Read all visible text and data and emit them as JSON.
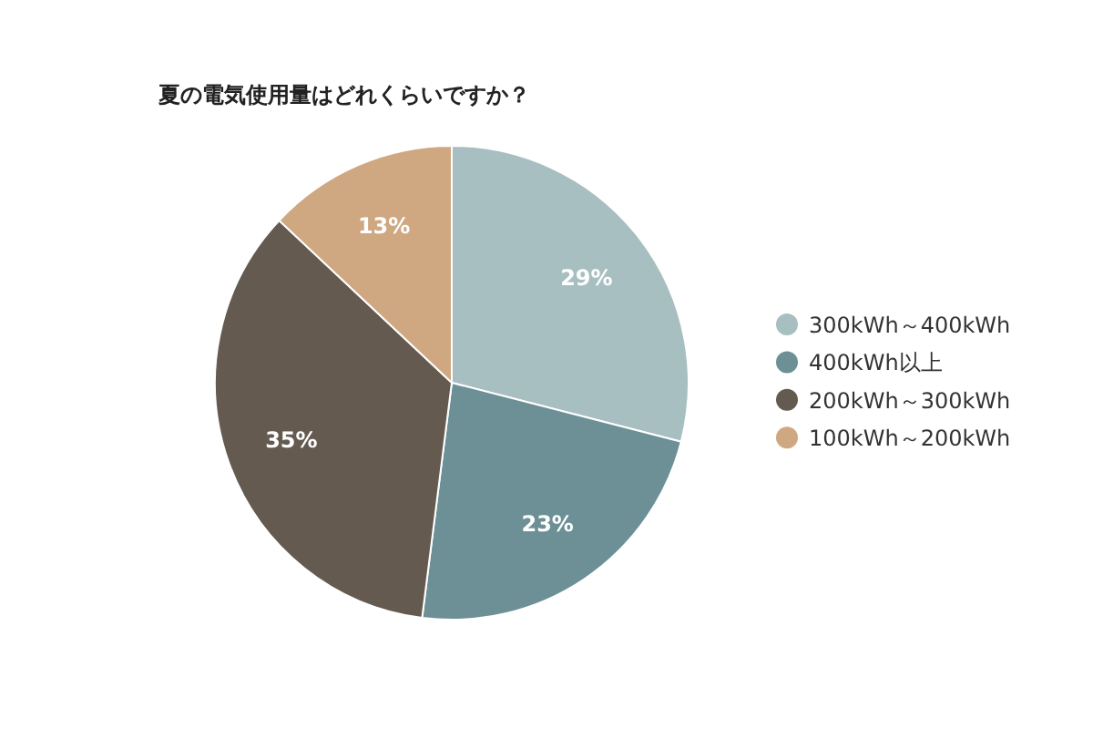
{
  "chart_data": {
    "type": "pie",
    "title": "夏の電気使用量はどれくらいですか？",
    "categories": [
      "300kWh～400kWh",
      "400kWh以上",
      "200kWh～300kWh",
      "100kWh～200kWh"
    ],
    "values": [
      29,
      23,
      35,
      13
    ],
    "value_labels": [
      "29%",
      "23%",
      "35%",
      "13%"
    ],
    "colors": [
      "#a8bfc1",
      "#6c9095",
      "#645a50",
      "#cfa882"
    ],
    "legend": "right"
  }
}
